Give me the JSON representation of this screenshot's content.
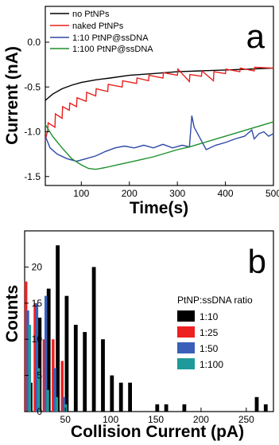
{
  "chart_data": [
    {
      "panel_label": "a",
      "type": "line",
      "xlabel": "Time(s)",
      "ylabel": "Current (nA)",
      "xlim": [
        25,
        500
      ],
      "ylim": [
        -1.6,
        0.4
      ],
      "xticks": [
        100,
        200,
        300,
        400,
        500
      ],
      "yticks": [
        0.0,
        -0.5,
        -1.0,
        -1.5
      ],
      "xtick_labels": [
        "100",
        "200",
        "300",
        "400",
        "500"
      ],
      "ytick_labels": [
        "0.0",
        "-0.5",
        "-1.0",
        "-1.5"
      ],
      "grid": false,
      "legend_position": "top-left",
      "series": [
        {
          "name": "no PtNPs",
          "color": "#000000",
          "x": [
            25,
            40,
            60,
            80,
            100,
            130,
            160,
            200,
            250,
            300,
            350,
            400,
            450,
            500
          ],
          "y": [
            -0.65,
            -0.58,
            -0.52,
            -0.48,
            -0.45,
            -0.42,
            -0.4,
            -0.37,
            -0.35,
            -0.33,
            -0.32,
            -0.31,
            -0.3,
            -0.29
          ]
        },
        {
          "name": "naked PtNPs",
          "color": "#e8201a",
          "x": [
            25,
            30,
            31,
            45,
            46,
            60,
            61,
            75,
            76,
            90,
            91,
            110,
            111,
            130,
            131,
            155,
            156,
            185,
            186,
            215,
            216,
            240,
            241,
            270,
            271,
            300,
            301,
            325,
            326,
            350,
            351,
            375,
            376,
            400,
            401,
            430,
            431,
            460,
            461,
            500
          ],
          "y": [
            -1.1,
            -0.98,
            -0.9,
            -0.95,
            -0.8,
            -0.85,
            -0.72,
            -0.76,
            -0.68,
            -0.72,
            -0.62,
            -0.66,
            -0.56,
            -0.6,
            -0.52,
            -0.55,
            -0.47,
            -0.5,
            -0.43,
            -0.46,
            -0.4,
            -0.43,
            -0.37,
            -0.4,
            -0.34,
            -0.37,
            -0.3,
            -0.44,
            -0.36,
            -0.38,
            -0.32,
            -0.43,
            -0.33,
            -0.35,
            -0.3,
            -0.33,
            -0.29,
            -0.32,
            -0.28,
            -0.29
          ]
        },
        {
          "name": "1:10 PtNP@ssDNA",
          "color": "#2f49a8",
          "x": [
            25,
            35,
            50,
            70,
            90,
            110,
            130,
            150,
            170,
            190,
            210,
            230,
            250,
            270,
            290,
            310,
            325,
            330,
            335,
            345,
            360,
            380,
            400,
            420,
            440,
            455,
            460,
            470,
            480,
            490,
            500
          ],
          "y": [
            -1.05,
            -1.18,
            -1.25,
            -1.3,
            -1.33,
            -1.3,
            -1.27,
            -1.22,
            -1.18,
            -1.16,
            -1.18,
            -1.15,
            -1.18,
            -1.14,
            -1.18,
            -1.15,
            -1.17,
            -0.82,
            -0.95,
            -1.05,
            -1.2,
            -1.15,
            -1.12,
            -1.08,
            -1.05,
            -0.98,
            -1.08,
            -1.02,
            -1.0,
            -1.05,
            -1.02
          ]
        },
        {
          "name": "1:100 PtNP@ssDNA",
          "color": "#1e8f2e",
          "x": [
            25,
            40,
            60,
            80,
            100,
            115,
            130,
            150,
            175,
            200,
            225,
            250,
            275,
            300,
            325,
            350,
            375,
            400,
            425,
            450,
            475,
            500
          ],
          "y": [
            -0.92,
            -1.05,
            -1.18,
            -1.3,
            -1.37,
            -1.41,
            -1.42,
            -1.4,
            -1.37,
            -1.34,
            -1.31,
            -1.28,
            -1.24,
            -1.2,
            -1.17,
            -1.13,
            -1.09,
            -1.05,
            -1.01,
            -0.97,
            -0.93,
            -0.89
          ]
        }
      ]
    },
    {
      "panel_label": "b",
      "type": "bar",
      "xlabel": "Collision Current (pA)",
      "ylabel": "Counts",
      "xlim": [
        5,
        280
      ],
      "ylim": [
        0,
        25
      ],
      "xticks": [
        50,
        100,
        150,
        200,
        250
      ],
      "yticks": [
        0,
        5,
        10,
        15,
        20
      ],
      "xtick_labels": [
        "50",
        "100",
        "150",
        "200",
        "250"
      ],
      "ytick_labels": [
        "0",
        "5",
        "10",
        "15",
        "20"
      ],
      "grid": false,
      "legend_title": "PtNP:ssDNA ratio",
      "legend_position": "right",
      "series": [
        {
          "name": "1:10",
          "color": "#000000",
          "x": [
            10,
            20,
            30,
            40,
            50,
            60,
            70,
            80,
            90,
            100,
            110,
            120,
            130,
            140,
            150,
            160,
            170,
            180,
            190,
            200,
            210,
            220,
            230,
            240,
            250,
            260,
            270
          ],
          "values": [
            4,
            13,
            17,
            23,
            16,
            12,
            11,
            20,
            10,
            5,
            4,
            4,
            0,
            0,
            1,
            1,
            0,
            1,
            0,
            0,
            0,
            0,
            0,
            0,
            0,
            2,
            1
          ]
        },
        {
          "name": "1:25",
          "color": "#ee2020",
          "x": [
            10,
            20,
            30,
            40,
            50
          ],
          "values": [
            18,
            15,
            10,
            10,
            7
          ]
        },
        {
          "name": "1:50",
          "color": "#3a5fb8",
          "x": [
            10,
            20,
            30,
            40,
            50
          ],
          "values": [
            14,
            15,
            16,
            6,
            2
          ]
        },
        {
          "name": "1:100",
          "color": "#1f9a9a",
          "x": [
            10,
            20,
            30,
            40,
            50
          ],
          "values": [
            12,
            6,
            3,
            2,
            1
          ]
        }
      ]
    }
  ]
}
